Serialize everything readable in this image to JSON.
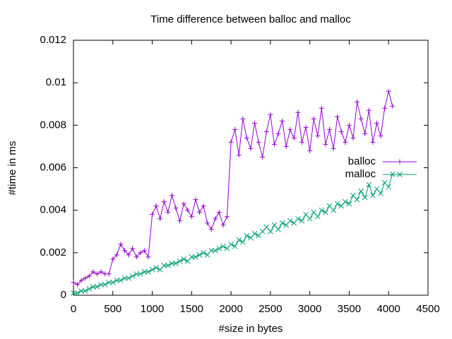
{
  "chart_data": {
    "type": "line",
    "title": "Time difference between balloc and malloc",
    "x_label": "#size in bytes",
    "y_label": "#time in ms",
    "xlim": [
      0,
      4500
    ],
    "xticks": [
      0,
      500,
      1000,
      1500,
      2000,
      2500,
      3000,
      3500,
      4000,
      4500
    ],
    "ylim": [
      0,
      0.012
    ],
    "yticks": [
      0,
      0.002,
      0.004,
      0.006,
      0.008,
      0.01,
      0.012
    ],
    "legend": "right",
    "x": [
      0,
      50,
      100,
      150,
      200,
      250,
      300,
      350,
      400,
      450,
      500,
      550,
      600,
      650,
      700,
      750,
      800,
      850,
      900,
      950,
      1000,
      1050,
      1100,
      1150,
      1200,
      1250,
      1300,
      1350,
      1400,
      1450,
      1500,
      1550,
      1600,
      1650,
      1700,
      1750,
      1800,
      1850,
      1900,
      1950,
      2000,
      2050,
      2100,
      2150,
      2200,
      2250,
      2300,
      2350,
      2400,
      2450,
      2500,
      2550,
      2600,
      2650,
      2700,
      2750,
      2800,
      2850,
      2900,
      2950,
      3000,
      3050,
      3100,
      3150,
      3200,
      3250,
      3300,
      3350,
      3400,
      3450,
      3500,
      3550,
      3600,
      3650,
      3700,
      3750,
      3800,
      3850,
      3900,
      3950,
      4000,
      4050
    ],
    "series": [
      {
        "name": "balloc",
        "color": "#9400d3",
        "marker": "plus",
        "values": [
          0.0006,
          0.0005,
          0.0007,
          0.0008,
          0.0009,
          0.0011,
          0.001,
          0.0011,
          0.001,
          0.001,
          0.0017,
          0.0019,
          0.0024,
          0.0021,
          0.0019,
          0.0022,
          0.0018,
          0.002,
          0.0021,
          0.0018,
          0.0038,
          0.0042,
          0.0036,
          0.0044,
          0.0039,
          0.0047,
          0.0041,
          0.0035,
          0.0043,
          0.004,
          0.0037,
          0.0045,
          0.0039,
          0.0042,
          0.0034,
          0.0031,
          0.0036,
          0.0039,
          0.0033,
          0.0037,
          0.0072,
          0.0078,
          0.0066,
          0.0083,
          0.0074,
          0.0069,
          0.0081,
          0.0072,
          0.0065,
          0.0077,
          0.0085,
          0.0071,
          0.0076,
          0.0082,
          0.007,
          0.0078,
          0.0074,
          0.0086,
          0.0072,
          0.0079,
          0.0068,
          0.0083,
          0.0075,
          0.0088,
          0.0071,
          0.0078,
          0.0069,
          0.0084,
          0.0077,
          0.0072,
          0.008,
          0.0074,
          0.0091,
          0.0083,
          0.0076,
          0.0087,
          0.0072,
          0.0081,
          0.0075,
          0.0088,
          0.0096,
          0.0089
        ]
      },
      {
        "name": "malloc",
        "color": "#009e73",
        "marker": "cross",
        "values": [
          0.0001,
          0.0001,
          0.0002,
          0.0002,
          0.0003,
          0.0004,
          0.0004,
          0.0005,
          0.0005,
          0.0006,
          0.0006,
          0.0007,
          0.0007,
          0.0008,
          0.0008,
          0.0009,
          0.001,
          0.001,
          0.0011,
          0.0011,
          0.0012,
          0.0013,
          0.0012,
          0.0014,
          0.0014,
          0.0015,
          0.0015,
          0.0016,
          0.0017,
          0.0016,
          0.0018,
          0.0018,
          0.0019,
          0.002,
          0.0019,
          0.0021,
          0.0021,
          0.0022,
          0.0023,
          0.0022,
          0.0024,
          0.0023,
          0.0026,
          0.0025,
          0.0028,
          0.0027,
          0.0029,
          0.0028,
          0.003,
          0.0032,
          0.003,
          0.0033,
          0.0031,
          0.0034,
          0.0033,
          0.0035,
          0.0034,
          0.0036,
          0.0035,
          0.0038,
          0.0036,
          0.0039,
          0.0037,
          0.004,
          0.0039,
          0.0042,
          0.004,
          0.0043,
          0.0042,
          0.0044,
          0.0043,
          0.0047,
          0.0045,
          0.0049,
          0.0046,
          0.0052,
          0.0047,
          0.005,
          0.0048,
          0.0053,
          0.0051,
          0.0057
        ]
      }
    ]
  }
}
